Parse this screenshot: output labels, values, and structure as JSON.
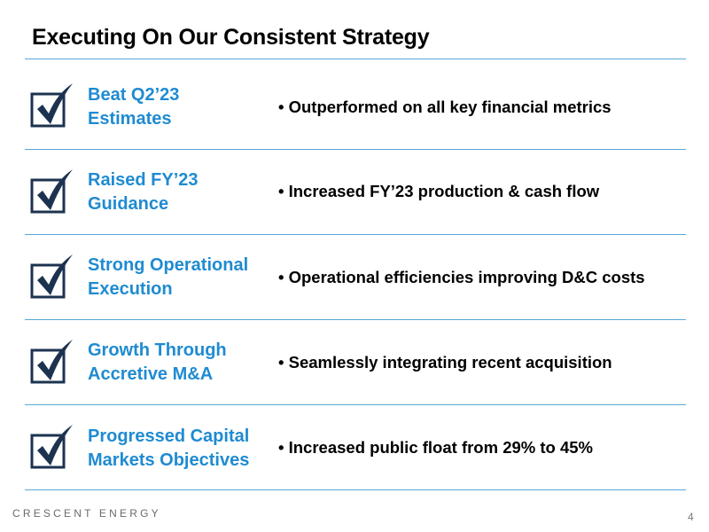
{
  "title": "Executing On Our Consistent Strategy",
  "rows": [
    {
      "heading_line1": "Beat Q2’23",
      "heading_line2": "Estimates",
      "bullet": "• Outperformed on all key financial metrics"
    },
    {
      "heading_line1": "Raised FY’23",
      "heading_line2": "Guidance",
      "bullet": "• Increased FY’23 production & cash flow"
    },
    {
      "heading_line1": "Strong Operational",
      "heading_line2": "Execution",
      "bullet": "• Operational efficiencies improving D&C costs"
    },
    {
      "heading_line1": "Growth Through",
      "heading_line2": "Accretive M&A",
      "bullet": "• Seamlessly integrating recent acquisition"
    },
    {
      "heading_line1": "Progressed Capital",
      "heading_line2": "Markets Objectives",
      "bullet": "• Increased public float from 29% to 45%"
    }
  ],
  "footer": {
    "brand": "CRESCENT ENERGY",
    "page_number": "4"
  },
  "colors": {
    "accent": "#1f8bd1",
    "rule": "#5aa7d8",
    "check": "#1c3350"
  },
  "icons": {
    "row_icon": "checkbox-checked-icon"
  }
}
